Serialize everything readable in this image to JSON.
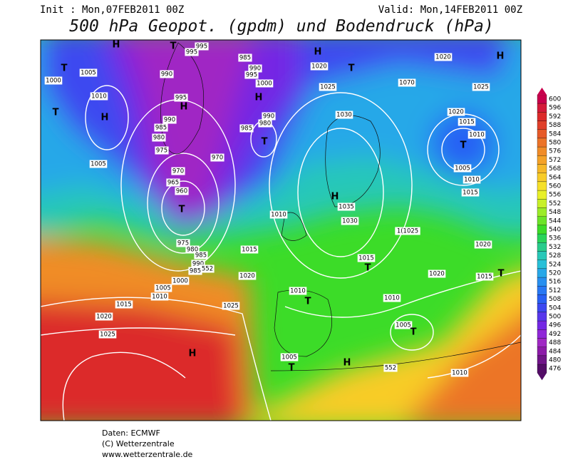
{
  "header": {
    "init": "Init : Mon,07FEB2011 00Z",
    "valid": "Valid: Mon,14FEB2011 00Z",
    "title": "500 hPa Geopot. (gpdm) und Bodendruck (hPa)"
  },
  "legend": {
    "levels": [
      600,
      596,
      592,
      588,
      584,
      580,
      576,
      572,
      568,
      564,
      560,
      556,
      552,
      548,
      544,
      540,
      536,
      532,
      528,
      524,
      520,
      516,
      512,
      508,
      504,
      500,
      496,
      492,
      488,
      484,
      480,
      476
    ],
    "colors": [
      "#c8004c",
      "#d41a3a",
      "#dc2a2a",
      "#e0402a",
      "#e65a28",
      "#ec7428",
      "#f08c28",
      "#f4a228",
      "#f6b828",
      "#f8cc28",
      "#f6e028",
      "#e8f028",
      "#c8f028",
      "#9cec28",
      "#6ce428",
      "#3cdc28",
      "#28d45a",
      "#28cc8c",
      "#28c8b8",
      "#28c0d8",
      "#28a8e8",
      "#2890f0",
      "#2878f4",
      "#2860f4",
      "#3c48f0",
      "#5838ec",
      "#7428e4",
      "#9028d8",
      "#a028c4",
      "#8c1aa8",
      "#701488",
      "#540c68"
    ]
  },
  "map": {
    "labels": [
      "T",
      "1005",
      "1000",
      "990",
      "1010",
      "H",
      "T",
      "995",
      "H",
      "990",
      "985",
      "980",
      "975",
      "970",
      "965",
      "960",
      "T",
      "1005",
      "985",
      "990",
      "995",
      "1000",
      "H",
      "990",
      "985",
      "980",
      "T",
      "970",
      "H",
      "1020",
      "T",
      "1025",
      "1070",
      "1020",
      "H",
      "1025",
      "1030",
      "1020",
      "1015",
      "1010",
      "T",
      "1005",
      "1010",
      "1015",
      "H",
      "1035",
      "1030",
      "1010",
      "1(1025",
      "975",
      "980",
      "985",
      "990",
      "985",
      "552",
      "1015",
      "T",
      "1015",
      "1020",
      "1020",
      "1015",
      "T",
      "1020",
      "1000",
      "1005",
      "1010",
      "1010",
      "T",
      "1010",
      "1015",
      "1025",
      "1020",
      "1005",
      "T",
      "1025",
      "H",
      "1005",
      "T",
      "H",
      "552",
      "1010",
      "H",
      "T",
      "995",
      "995"
    ]
  },
  "footer": {
    "lines": [
      "Daten: ECMWF",
      "(C) Wetterzentrale",
      "www.wetterzentrale.de"
    ]
  }
}
